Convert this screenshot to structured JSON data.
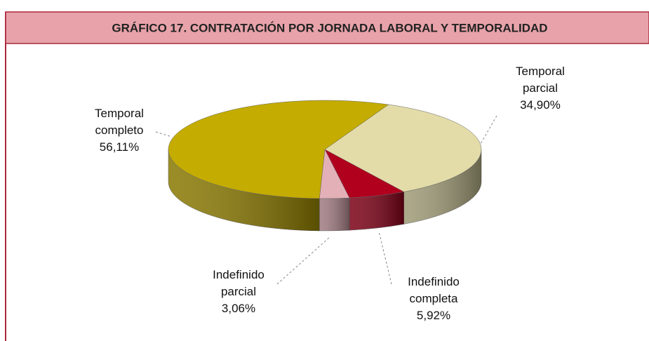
{
  "chart_data": {
    "type": "pie",
    "title": "GRÁFICO 17. CONTRATACIÓN POR JORNADA LABORAL Y TEMPORALIDAD",
    "categories": [
      "Temporal parcial",
      "Indefinido completa",
      "Indefinido parcial",
      "Temporal completo"
    ],
    "values": [
      34.9,
      5.92,
      3.06,
      56.11
    ],
    "value_labels": [
      "34,90%",
      "5,92%",
      "3,06%",
      "56,11%"
    ],
    "colors": [
      "#e3dca8",
      "#b0001e",
      "#e4b0b8",
      "#c4ac00"
    ]
  }
}
